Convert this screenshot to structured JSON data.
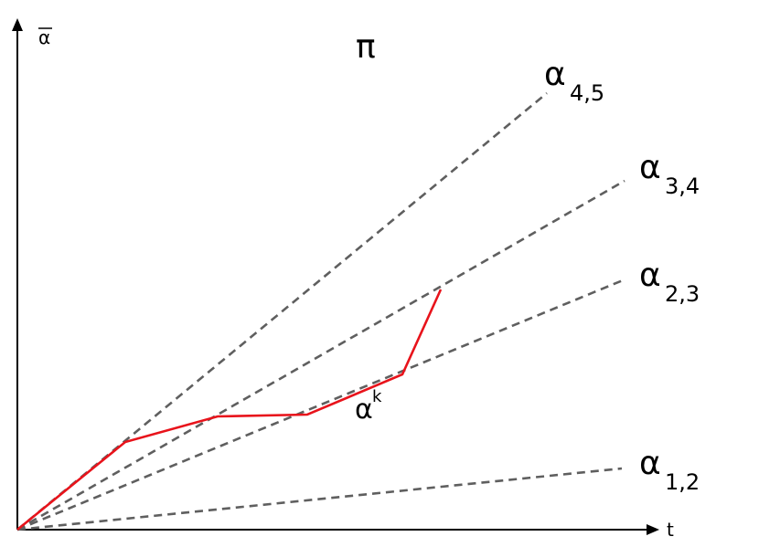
{
  "axes": {
    "y_label": "α",
    "x_label": "t"
  },
  "region_label": "π",
  "rays": [
    {
      "base": "α",
      "subscript": "1,2"
    },
    {
      "base": "α",
      "subscript": "2,3"
    },
    {
      "base": "α",
      "subscript": "3,4"
    },
    {
      "base": "α",
      "subscript": "4,5"
    }
  ],
  "path": {
    "base": "α",
    "superscript": "k"
  },
  "colors": {
    "axis": "#000000",
    "ray": "#5f5f5f",
    "path": "#e8131b"
  }
}
